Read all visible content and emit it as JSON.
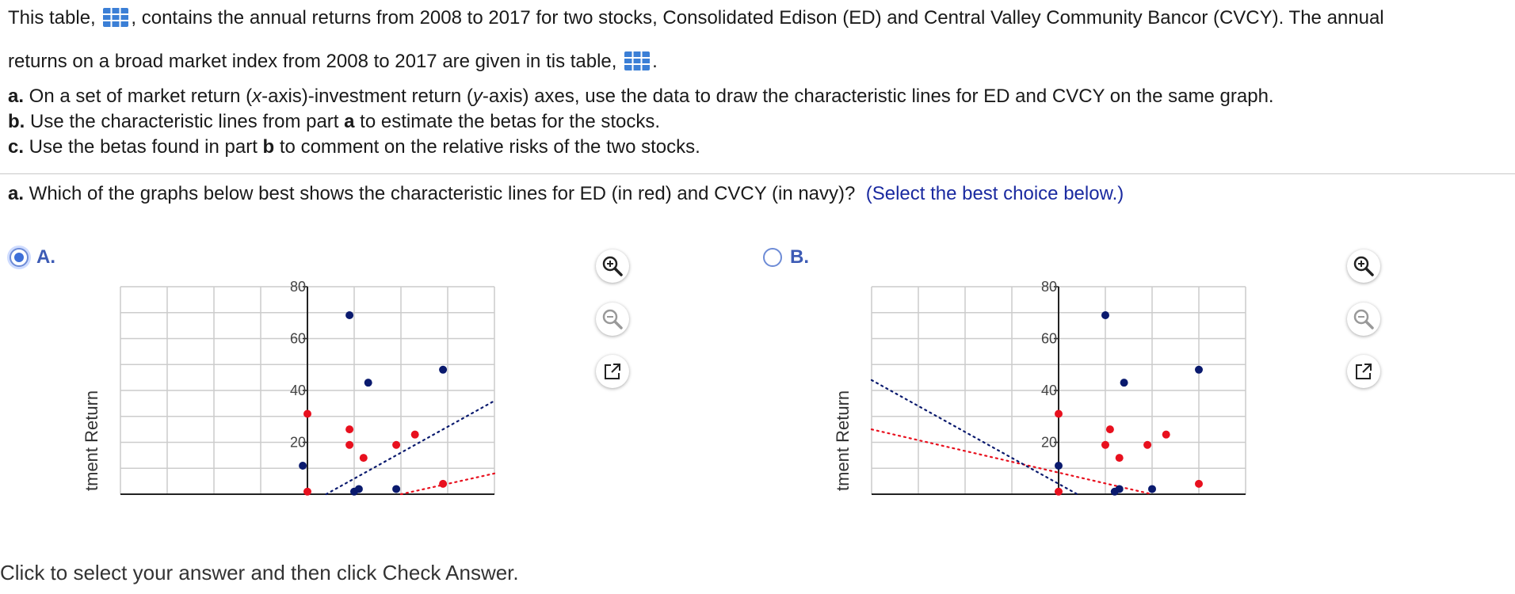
{
  "question": {
    "line1": [
      "This table, ",
      ", contains the annual returns from 2008 to 2017 for two stocks, Consolidated Edison (ED) and Central Valley Community Bancor (CVCY). The annual"
    ],
    "line2": [
      "returns on a broad market index from 2008 to 2017 are given in tis table, ",
      "."
    ],
    "part_a": {
      "label": "a.",
      "text1": " On a set of market return (",
      "x": "x",
      "text2": "-axis)-investment return (",
      "y": "y",
      "text3": "-axis) axes, use the data to draw the characteristic lines for ED and CVCY on the same graph."
    },
    "part_b": {
      "label": "b.",
      "text1": " Use the characteristic lines from part ",
      "ref": "a",
      "text2": " to estimate the betas for the stocks."
    },
    "part_c": {
      "label": "c.",
      "text1": " Use the betas found in part ",
      "ref": "b",
      "text2": " to comment on the relative risks of the two stocks."
    },
    "prompt": {
      "label": "a.",
      "text": " Which of the graphs below best shows the characteristic lines for ED (in red) and CVCY (in navy)?",
      "hint": "(Select the best choice below.)"
    }
  },
  "choices": [
    {
      "letter": "A.",
      "selected": true
    },
    {
      "letter": "B.",
      "selected": false
    }
  ],
  "graph_common": {
    "ylabel": "tment Return",
    "yticks": [
      "20",
      "40",
      "60",
      "80"
    ]
  },
  "colors": {
    "ed": "#e8101e",
    "cvcy": "#0a1a6e",
    "accent": "#3d5bb5"
  },
  "tools": [
    "zoom-in-icon",
    "zoom-out-icon",
    "pop-out-icon"
  ],
  "chart_data": [
    {
      "type": "scatter",
      "choice": "A",
      "ylabel": "tment Return",
      "xlim": [
        -40,
        40
      ],
      "ylim": [
        0,
        80
      ],
      "grid": true,
      "series": [
        {
          "points": [
            [
              0,
              31
            ],
            [
              9,
              25
            ],
            [
              9,
              19
            ],
            [
              12,
              14
            ],
            [
              19,
              19
            ],
            [
              23,
              23
            ],
            [
              29,
              4
            ],
            [
              0,
              1
            ]
          ]
        },
        {
          "points": [
            [
              9,
              69
            ],
            [
              13,
              43
            ],
            [
              29,
              48
            ],
            [
              -1,
              11
            ],
            [
              11,
              2
            ],
            [
              19,
              2
            ],
            [
              10,
              1
            ]
          ]
        }
      ],
      "lines": [
        {
          "x1": 20,
          "y1": 0,
          "x2": 40,
          "y2": 8
        },
        {
          "x1": 4,
          "y1": 0,
          "x2": 40,
          "y2": 36
        }
      ]
    },
    {
      "type": "scatter",
      "choice": "B",
      "ylabel": "tment Return",
      "xlim": [
        -40,
        40
      ],
      "ylim": [
        0,
        80
      ],
      "grid": true,
      "series": [
        {
          "points": [
            [
              0,
              31
            ],
            [
              11,
              25
            ],
            [
              10,
              19
            ],
            [
              13,
              14
            ],
            [
              19,
              19
            ],
            [
              23,
              23
            ],
            [
              30,
              4
            ],
            [
              0,
              1
            ]
          ]
        },
        {
          "points": [
            [
              10,
              69
            ],
            [
              14,
              43
            ],
            [
              30,
              48
            ],
            [
              0,
              11
            ],
            [
              13,
              2
            ],
            [
              20,
              2
            ],
            [
              12,
              1
            ]
          ]
        }
      ],
      "lines": [
        {
          "x1": -40,
          "y1": 25,
          "x2": 20,
          "y2": 0
        },
        {
          "x1": -40,
          "y1": 44,
          "x2": 4,
          "y2": 0
        }
      ]
    }
  ],
  "footer": "Click to select your answer and then click Check Answer."
}
